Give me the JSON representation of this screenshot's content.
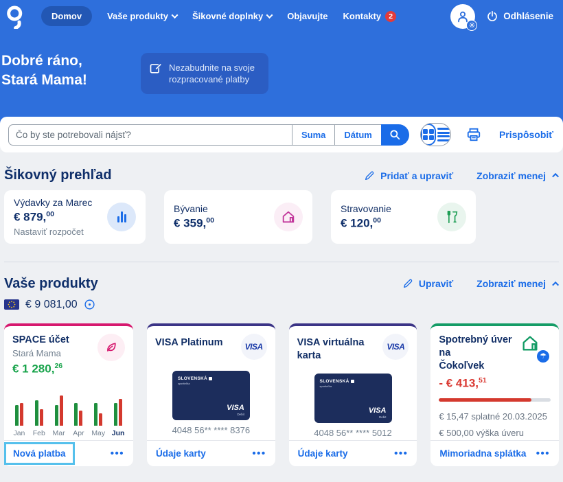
{
  "nav": {
    "items": [
      "Domov",
      "Vaše produkty",
      "Šikovné doplnky",
      "Objavujte",
      "Kontakty"
    ],
    "contacts_badge": "2",
    "logout_label": "Odhlásenie"
  },
  "hero": {
    "greeting_line1": "Dobré ráno,",
    "greeting_line2": "Stará Mama!",
    "reminder_text": "Nezabudnite na svoje rozpracované platby"
  },
  "search": {
    "placeholder": "Čo by ste potrebovali nájsť?",
    "amount_filter_label": "Suma",
    "date_filter_label": "Dátum",
    "customize_label": "Prispôsobiť"
  },
  "overview": {
    "title": "Šikovný prehľad",
    "add_edit_label": "Pridať a upraviť",
    "show_less_label": "Zobraziť menej",
    "cards": [
      {
        "title": "Výdavky za Marec",
        "amount": "€ 879,",
        "cents": "00",
        "subtitle": "Nastaviť rozpočet",
        "icon": "bar-chart-icon"
      },
      {
        "title": "Bývanie",
        "amount": "€ 359,",
        "cents": "00",
        "icon": "house-icon"
      },
      {
        "title": "Stravovanie",
        "amount": "€ 120,",
        "cents": "00",
        "icon": "dining-icon"
      }
    ]
  },
  "products": {
    "title": "Vaše produkty",
    "edit_label": "Upraviť",
    "show_less_label": "Zobraziť menej",
    "total_amount": "€ 9 081,00",
    "menu_dots": "•••",
    "account": {
      "name": "SPACE účet",
      "owner": "Stará Mama",
      "amount": "€ 1 280,",
      "cents": "26",
      "action_label": "Nová platba"
    },
    "cards": [
      {
        "name": "VISA Platinum",
        "number": "4048 56** **** 8376",
        "action_label": "Údaje karty"
      },
      {
        "name": "VISA virtuálna karta",
        "number": "4048 56** **** 5012",
        "action_label": "Údaje karty"
      }
    ],
    "card_face": {
      "bank": "SLOVENSKÁ",
      "bank_sub": "sporiteľňa",
      "brand": "VISA",
      "type": "Debit"
    },
    "loan": {
      "name_line1": "Spotrebný úver na",
      "name_line2": "Čokoľvek",
      "amount": "- € 413,",
      "cents": "51",
      "progress_pct": 83,
      "due_line": "€ 15,47 splatné 20.03.2025",
      "total_line": "€ 500,00 výška úveru",
      "action_label": "Mimoriadna splátka"
    }
  },
  "chart_data": {
    "type": "bar",
    "categories": [
      "Jan",
      "Feb",
      "Mar",
      "Apr",
      "May",
      "Jun"
    ],
    "series": [
      {
        "name": "green-bars",
        "color": "#1f8f3e",
        "values": [
          60,
          74,
          60,
          66,
          66,
          66
        ]
      },
      {
        "name": "red-bars",
        "color": "#d4392e",
        "values": [
          66,
          48,
          88,
          44,
          36,
          78
        ]
      }
    ],
    "ylim": [
      0,
      100
    ],
    "unit": "relative-height-percent",
    "highlighted_category": "Jun",
    "legend": "none",
    "grid": false
  },
  "colors": {
    "nav_blue": "#2e6fdc",
    "link_blue": "#1a6ce8",
    "navy_text": "#0f2f6a",
    "positive_green": "#17a34a",
    "negative_red": "#da3a33",
    "account_strip": "#d6186e",
    "visa_strip": "#3b3486",
    "loan_strip": "#149c66",
    "highlight_cyan": "#55c0ec"
  }
}
